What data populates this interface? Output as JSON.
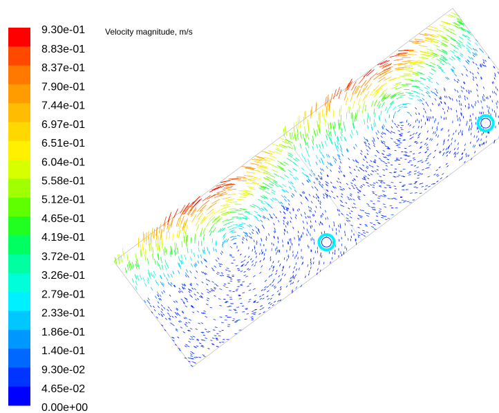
{
  "legend": {
    "title": "Velocity magnitude, m/s",
    "ticks": [
      {
        "value": 0.93,
        "label": "9.30e-01"
      },
      {
        "value": 0.883,
        "label": "8.83e-01"
      },
      {
        "value": 0.837,
        "label": "8.37e-01"
      },
      {
        "value": 0.79,
        "label": "7.90e-01"
      },
      {
        "value": 0.744,
        "label": "7.44e-01"
      },
      {
        "value": 0.697,
        "label": "6.97e-01"
      },
      {
        "value": 0.651,
        "label": "6.51e-01"
      },
      {
        "value": 0.604,
        "label": "6.04e-01"
      },
      {
        "value": 0.558,
        "label": "5.58e-01"
      },
      {
        "value": 0.512,
        "label": "5.12e-01"
      },
      {
        "value": 0.465,
        "label": "4.65e-01"
      },
      {
        "value": 0.419,
        "label": "4.19e-01"
      },
      {
        "value": 0.372,
        "label": "3.72e-01"
      },
      {
        "value": 0.326,
        "label": "3.26e-01"
      },
      {
        "value": 0.279,
        "label": "2.79e-01"
      },
      {
        "value": 0.233,
        "label": "2.33e-01"
      },
      {
        "value": 0.186,
        "label": "1.86e-01"
      },
      {
        "value": 0.14,
        "label": "1.40e-01"
      },
      {
        "value": 0.093,
        "label": "9.30e-02"
      },
      {
        "value": 0.0465,
        "label": "4.65e-02"
      },
      {
        "value": 0,
        "label": "0.00e+00"
      }
    ],
    "colors": [
      "#ff0000",
      "#ff4800",
      "#ff7800",
      "#ff9c00",
      "#ffbc00",
      "#ffd800",
      "#fff000",
      "#d8ff00",
      "#a0ff00",
      "#60ff00",
      "#20ff20",
      "#00ff60",
      "#00ffa0",
      "#00ffd8",
      "#00f0ff",
      "#00c8ff",
      "#0098ff",
      "#0068ff",
      "#0034ff",
      "#0000ff"
    ]
  }
}
